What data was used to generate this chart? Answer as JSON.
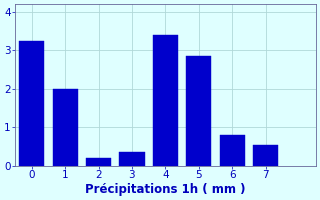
{
  "categories": [
    0,
    1,
    2,
    3,
    4,
    5,
    6,
    7
  ],
  "values": [
    3.25,
    2.0,
    0.2,
    0.35,
    3.4,
    2.85,
    0.8,
    0.55
  ],
  "bar_color": "#0000cc",
  "bar_edge_color": "#0000cc",
  "background_color": "#dfffff",
  "grid_color": "#b0d8d8",
  "xlabel": "Précipitations 1h ( mm )",
  "xlabel_color": "#0000bb",
  "tick_color": "#0000bb",
  "axis_color": "#666699",
  "ylim": [
    0,
    4.2
  ],
  "yticks": [
    0,
    1,
    2,
    3,
    4
  ],
  "xlim": [
    -0.5,
    8.5
  ],
  "bar_width": 0.75,
  "figsize": [
    3.2,
    2.0
  ],
  "dpi": 100,
  "tick_fontsize": 7.5,
  "xlabel_fontsize": 8.5
}
